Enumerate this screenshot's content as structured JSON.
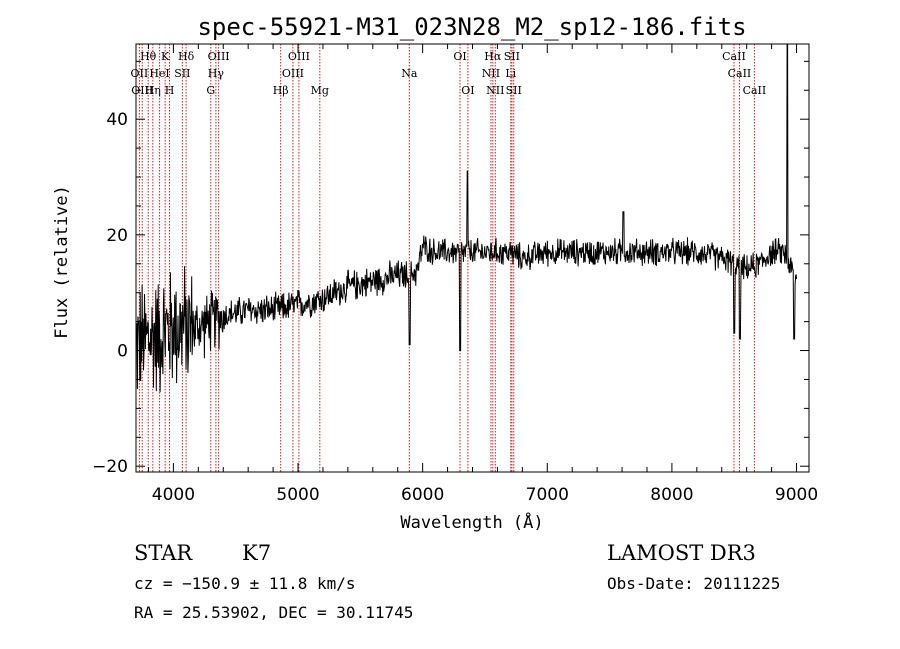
{
  "chart_data": {
    "type": "line",
    "title": "spec-55921-M31_023N28_M2_sp12-186.fits",
    "xlabel": "Wavelength (Å)",
    "ylabel": "Flux (relative)",
    "xlim": [
      3700,
      9100
    ],
    "ylim": [
      -21,
      53
    ],
    "xticks": [
      4000,
      5000,
      6000,
      7000,
      8000,
      9000
    ],
    "yticks": [
      -20,
      0,
      20,
      40
    ],
    "xtick_labels": [
      "4000",
      "5000",
      "6000",
      "7000",
      "8000",
      "9000"
    ],
    "ytick_labels": [
      "−20",
      "0",
      "20",
      "40"
    ],
    "spectrum_anchor_points": {
      "wavelength": [
        3700,
        3800,
        3900,
        4000,
        4100,
        4200,
        4300,
        4400,
        4600,
        4800,
        5000,
        5200,
        5400,
        5600,
        5800,
        5900,
        5960,
        6000,
        6100,
        6200,
        6300,
        6400,
        6500,
        6600,
        6700,
        6800,
        7000,
        7200,
        7400,
        7600,
        7800,
        8000,
        8200,
        8400,
        8500,
        8600,
        8700,
        8800,
        8900,
        9000
      ],
      "flux": [
        1,
        2,
        3,
        4,
        4,
        4,
        5,
        6,
        7,
        7,
        8,
        9,
        11,
        12,
        13,
        13,
        14,
        18,
        17,
        17,
        17,
        17,
        17,
        17,
        17,
        16,
        17,
        17,
        17,
        17,
        17,
        17,
        17,
        16,
        15,
        14,
        15,
        17,
        17,
        12
      ]
    },
    "spectral_lines": [
      {
        "wavelength": 3727,
        "label": "OII",
        "row": 1
      },
      {
        "wavelength": 3750,
        "label": "OIII",
        "row": 2
      },
      {
        "wavelength": 3798,
        "label": "Hθ",
        "row": 0
      },
      {
        "wavelength": 3835,
        "label": "Hη",
        "row": 2
      },
      {
        "wavelength": 3889,
        "label": "HeI",
        "row": 1
      },
      {
        "wavelength": 3934,
        "label": "K",
        "row": 0
      },
      {
        "wavelength": 3969,
        "label": "H",
        "row": 2
      },
      {
        "wavelength": 4072,
        "label": "SII",
        "row": 1
      },
      {
        "wavelength": 4102,
        "label": "Hδ",
        "row": 0
      },
      {
        "wavelength": 4300,
        "label": "G",
        "row": 2
      },
      {
        "wavelength": 4341,
        "label": "Hγ",
        "row": 1
      },
      {
        "wavelength": 4363,
        "label": "OIII",
        "row": 0
      },
      {
        "wavelength": 4861,
        "label": "Hβ",
        "row": 2
      },
      {
        "wavelength": 4959,
        "label": "OIII",
        "row": 1
      },
      {
        "wavelength": 5007,
        "label": "OIII",
        "row": 0
      },
      {
        "wavelength": 5175,
        "label": "Mg",
        "row": 2
      },
      {
        "wavelength": 5893,
        "label": "Na",
        "row": 1
      },
      {
        "wavelength": 6300,
        "label": "OI",
        "row": 0
      },
      {
        "wavelength": 6363,
        "label": "OI",
        "row": 2
      },
      {
        "wavelength": 6548,
        "label": "NII",
        "row": 1
      },
      {
        "wavelength": 6563,
        "label": "Hα",
        "row": 0
      },
      {
        "wavelength": 6583,
        "label": "NII",
        "row": 2
      },
      {
        "wavelength": 6707,
        "label": "Li",
        "row": 1
      },
      {
        "wavelength": 6716,
        "label": "SII",
        "row": 0
      },
      {
        "wavelength": 6731,
        "label": "SII",
        "row": 2
      },
      {
        "wavelength": 8498,
        "label": "CaII",
        "row": 0
      },
      {
        "wavelength": 8542,
        "label": "CaII",
        "row": 1
      },
      {
        "wavelength": 8662,
        "label": "CaII",
        "row": 2
      }
    ]
  },
  "info": {
    "object_class": "STAR",
    "subclass": "K7",
    "survey": "LAMOST DR3",
    "redshift_text": "cz = −150.9 ± 11.8 km/s",
    "obs_date_text": "Obs-Date: 20111225",
    "coords_text": "RA =  25.53902, DEC =  30.11745"
  },
  "colors": {
    "line_marker": "#cc2222",
    "spectrum": "#000000",
    "axes": "#000000"
  }
}
